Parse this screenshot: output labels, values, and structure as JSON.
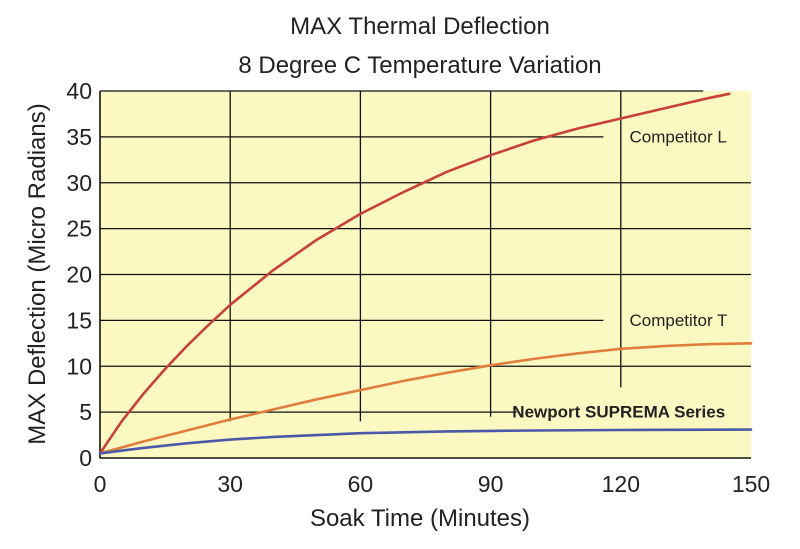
{
  "chart_data": {
    "type": "line",
    "title": "MAX Thermal Deflection",
    "subtitle": "8 Degree C Temperature Variation",
    "xlabel": "Soak Time (Minutes)",
    "ylabel": "MAX Deflection (Micro Radians)",
    "xlim": [
      0,
      150
    ],
    "ylim": [
      0,
      40
    ],
    "x_ticks": [
      "0",
      "30",
      "60",
      "90",
      "120",
      "150"
    ],
    "y_ticks": [
      "0",
      "5",
      "10",
      "15",
      "20",
      "25",
      "30",
      "35",
      "40"
    ],
    "grid": true,
    "series": [
      {
        "name": "Competitor L",
        "color": "#c8403a",
        "x": [
          0,
          5,
          10,
          15,
          20,
          25,
          30,
          40,
          50,
          60,
          70,
          80,
          90,
          100,
          110,
          120,
          130,
          140,
          145
        ],
        "y": [
          0.5,
          4.0,
          7.0,
          9.7,
          12.2,
          14.5,
          16.7,
          20.5,
          23.8,
          26.6,
          29.0,
          31.2,
          33.0,
          34.6,
          35.9,
          37.0,
          38.1,
          39.2,
          39.7
        ]
      },
      {
        "name": "Competitor T",
        "color": "#e07f3c",
        "x": [
          0,
          10,
          20,
          30,
          40,
          50,
          60,
          70,
          80,
          90,
          100,
          110,
          120,
          130,
          140,
          150
        ],
        "y": [
          0.5,
          1.8,
          3.0,
          4.2,
          5.3,
          6.4,
          7.4,
          8.4,
          9.3,
          10.1,
          10.8,
          11.4,
          11.9,
          12.2,
          12.4,
          12.5
        ]
      },
      {
        "name": "Newport SUPREMA Series",
        "color": "#4a5aa8",
        "x": [
          0,
          10,
          20,
          30,
          40,
          50,
          60,
          70,
          80,
          90,
          100,
          120,
          150
        ],
        "y": [
          0.5,
          1.1,
          1.6,
          2.0,
          2.3,
          2.5,
          2.7,
          2.8,
          2.9,
          2.95,
          3.0,
          3.05,
          3.1
        ]
      }
    ],
    "annotations": [
      {
        "text": "Competitor L",
        "series": "Competitor L"
      },
      {
        "text": "Competitor T",
        "series": "Competitor T"
      },
      {
        "text": "Newport SUPREMA Series",
        "series": "Newport SUPREMA Series"
      }
    ],
    "colors": {
      "plot_bg": "#fbf8c2",
      "grid": "#111111",
      "frame": "#111111"
    }
  }
}
